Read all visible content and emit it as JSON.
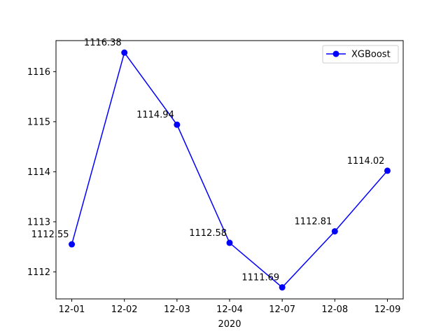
{
  "chart_data": {
    "type": "line",
    "title": "",
    "xlabel": "2020",
    "ylabel": "",
    "categories": [
      "12-01",
      "12-02",
      "12-03",
      "12-04",
      "12-07",
      "12-08",
      "12-09"
    ],
    "series": [
      {
        "name": "XGBoost",
        "values": [
          1112.55,
          1116.38,
          1114.94,
          1112.58,
          1111.69,
          1112.81,
          1114.02
        ],
        "labels": [
          "1112.55",
          "1116.38",
          "1114.94",
          "1112.58",
          "1111.69",
          "1112.81",
          "1114.02"
        ],
        "color": "#0000ff",
        "marker": "circle"
      }
    ],
    "yticks": [
      1112,
      1113,
      1114,
      1115,
      1116
    ],
    "ylim": [
      1111.46,
      1116.62
    ],
    "grid": false,
    "legend_position": "top-right"
  }
}
